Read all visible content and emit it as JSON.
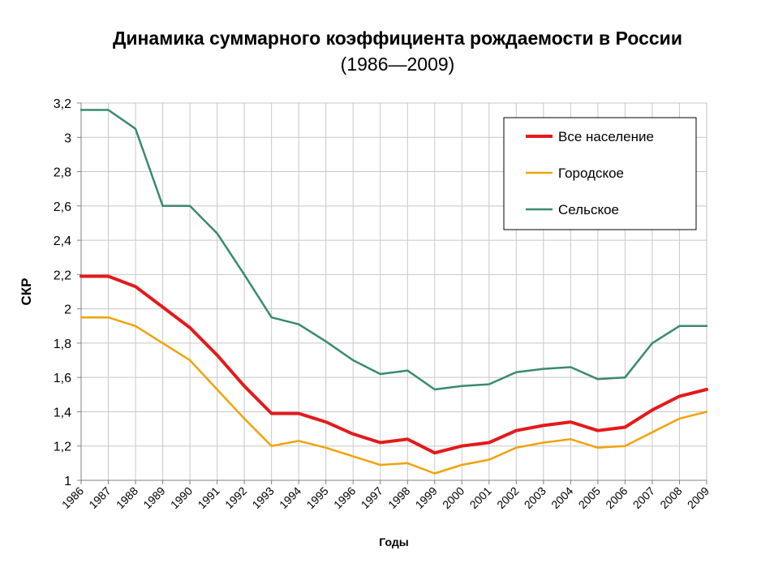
{
  "chart_data": {
    "type": "line",
    "title": "Динамика суммарного коэффициента рождаемости в России",
    "subtitle": "(1986—2009)",
    "xlabel": "Годы",
    "ylabel": "СКР",
    "x": [
      1986,
      1987,
      1988,
      1989,
      1990,
      1991,
      1992,
      1993,
      1994,
      1995,
      1996,
      1997,
      1998,
      1999,
      2000,
      2001,
      2002,
      2003,
      2004,
      2005,
      2006,
      2007,
      2008,
      2009
    ],
    "x_tick_labels": [
      "1986",
      "1987",
      "1988",
      "1989",
      "1990",
      "1991",
      "1992",
      "1993",
      "1994",
      "1995",
      "1996",
      "1997",
      "1998",
      "1999",
      "2000",
      "2001",
      "2002",
      "2003",
      "2004",
      "2005",
      "2006",
      "2007",
      "2008",
      "2009"
    ],
    "y_tick_labels": [
      "1",
      "1,2",
      "1,4",
      "1,6",
      "1,8",
      "2",
      "2,2",
      "2,4",
      "2,6",
      "2,8",
      "3",
      "3,2"
    ],
    "ylim": [
      1,
      3.2
    ],
    "grid": true,
    "legend_position": "top-right",
    "series": [
      {
        "name": "Все население",
        "color": "#e31a1c",
        "values": [
          2.19,
          2.19,
          2.13,
          2.01,
          1.89,
          1.73,
          1.55,
          1.39,
          1.39,
          1.34,
          1.27,
          1.22,
          1.24,
          1.16,
          1.2,
          1.22,
          1.29,
          1.32,
          1.34,
          1.29,
          1.31,
          1.41,
          1.49,
          1.53
        ]
      },
      {
        "name": "Городское",
        "color": "#f0a30a",
        "values": [
          1.95,
          1.95,
          1.9,
          1.8,
          1.7,
          1.53,
          1.36,
          1.2,
          1.23,
          1.19,
          1.14,
          1.09,
          1.1,
          1.04,
          1.09,
          1.12,
          1.19,
          1.22,
          1.24,
          1.19,
          1.2,
          1.28,
          1.36,
          1.4
        ]
      },
      {
        "name": "Сельское",
        "color": "#3a8a6e",
        "values": [
          3.16,
          3.16,
          3.05,
          2.6,
          2.6,
          2.44,
          2.2,
          1.95,
          1.91,
          1.81,
          1.7,
          1.62,
          1.64,
          1.53,
          1.55,
          1.56,
          1.63,
          1.65,
          1.66,
          1.59,
          1.6,
          1.8,
          1.9,
          1.9
        ]
      }
    ]
  }
}
